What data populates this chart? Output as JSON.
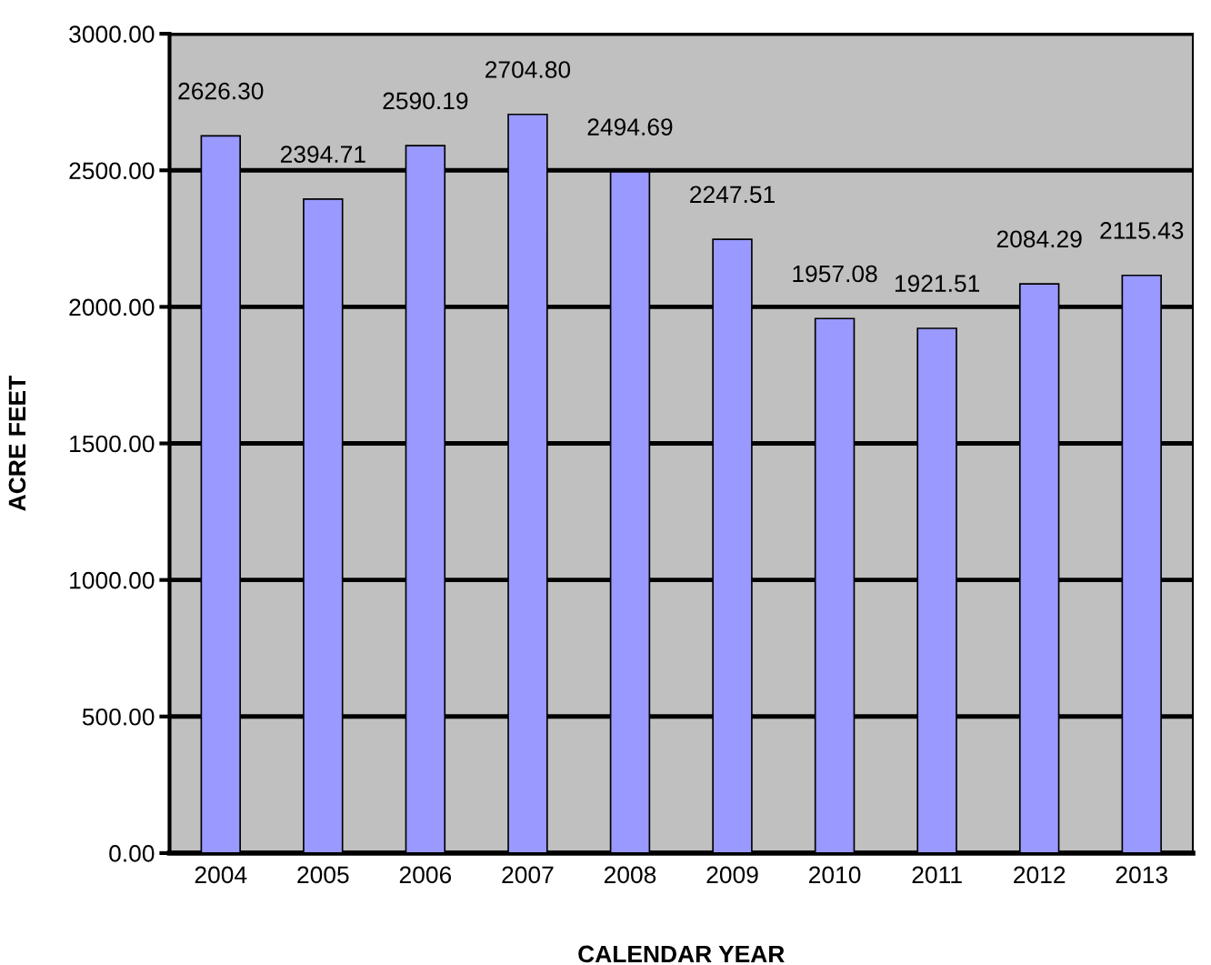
{
  "chart_data": {
    "type": "bar",
    "xlabel": "CALENDAR YEAR",
    "ylabel": "ACRE FEET",
    "categories": [
      "2004",
      "2005",
      "2006",
      "2007",
      "2008",
      "2009",
      "2010",
      "2011",
      "2012",
      "2013"
    ],
    "values": [
      2626.3,
      2394.71,
      2590.19,
      2704.8,
      2494.69,
      2247.51,
      1957.08,
      1921.51,
      2084.29,
      2115.43
    ],
    "value_labels": [
      "2626.30",
      "2394.71",
      "2590.19",
      "2704.80",
      "2494.69",
      "2247.51",
      "1957.08",
      "1921.51",
      "2084.29",
      "2115.43"
    ],
    "color": "#9999ff",
    "ylim": [
      0,
      3000
    ],
    "yticks": [
      {
        "value": 0,
        "label": "0.00"
      },
      {
        "value": 500,
        "label": "500.00"
      },
      {
        "value": 1000,
        "label": "1000.00"
      },
      {
        "value": 1500,
        "label": "1500.00"
      },
      {
        "value": 2000,
        "label": "2000.00"
      },
      {
        "value": 2500,
        "label": "2500.00"
      },
      {
        "value": 3000,
        "label": "3000.00"
      }
    ],
    "grid": "y"
  }
}
